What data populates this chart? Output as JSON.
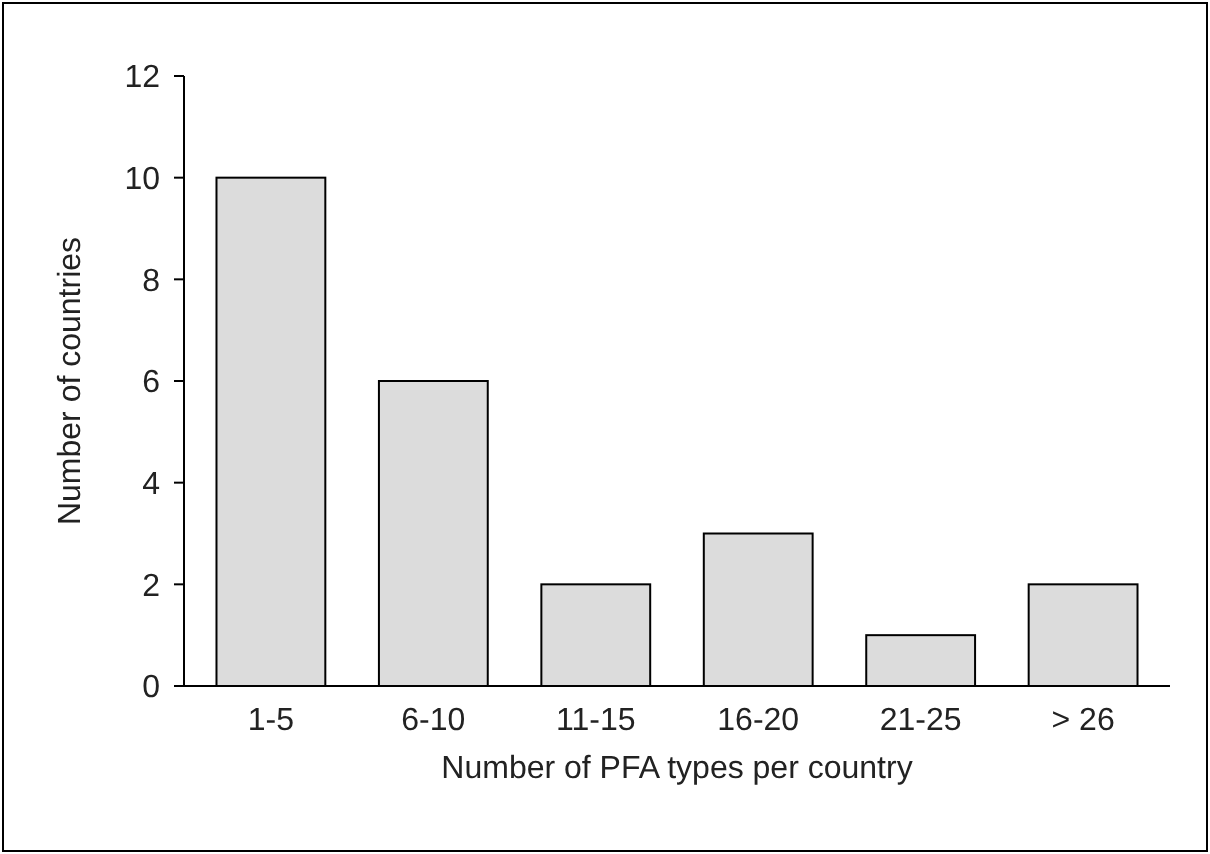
{
  "chart_data": {
    "type": "bar",
    "xlabel": "Number of PFA types per country",
    "ylabel": "Number of countries",
    "categories": [
      "1-5",
      "6-10",
      "11-15",
      "16-20",
      "21-25",
      "> 26"
    ],
    "values": [
      10,
      6,
      2,
      3,
      1,
      2
    ],
    "color": "#dcdcdc",
    "ylim": [
      0,
      12
    ],
    "yticks": [
      0,
      2,
      4,
      6,
      8,
      10,
      12
    ]
  }
}
